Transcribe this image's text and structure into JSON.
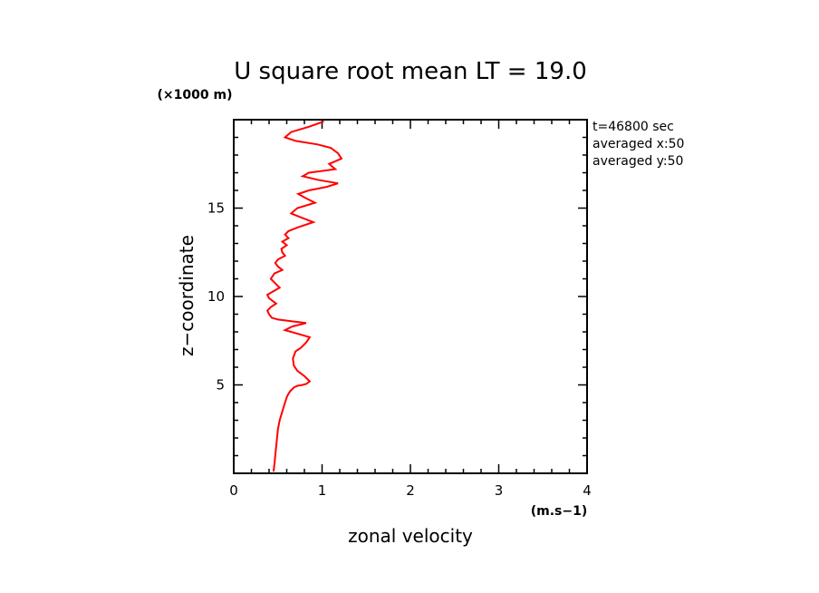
{
  "chart_data": {
    "type": "line",
    "title": "U square root mean LT = 19.0",
    "xlabel": "zonal velocity",
    "ylabel": "z−coordinate",
    "x_unit": "(m.s−1)",
    "y_unit": "(×1000 m)",
    "xlim": [
      0,
      4
    ],
    "ylim": [
      0,
      20
    ],
    "x_ticks": [
      "0",
      "1",
      "2",
      "3",
      "4"
    ],
    "y_ticks": [
      "5",
      "10",
      "15"
    ],
    "grid": false,
    "info_lines": [
      "t=46800 sec",
      "averaged  x:50",
      "averaged  y:50"
    ],
    "series": [
      {
        "color": "#ff0000",
        "x": [
          0.45,
          0.46,
          0.47,
          0.48,
          0.49,
          0.5,
          0.52,
          0.55,
          0.58,
          0.6,
          0.62,
          0.64,
          0.66,
          0.68,
          0.72,
          0.78,
          0.82,
          0.86,
          0.8,
          0.72,
          0.68,
          0.67,
          0.7,
          0.76,
          0.82,
          0.86,
          0.72,
          0.58,
          0.66,
          0.82,
          0.65,
          0.5,
          0.43,
          0.4,
          0.38,
          0.42,
          0.48,
          0.4,
          0.38,
          0.45,
          0.52,
          0.48,
          0.42,
          0.46,
          0.55,
          0.5,
          0.47,
          0.5,
          0.58,
          0.55,
          0.54,
          0.6,
          0.55,
          0.62,
          0.58,
          0.62,
          0.72,
          0.9,
          0.75,
          0.65,
          0.72,
          0.92,
          0.8,
          0.73,
          0.85,
          1.05,
          1.18,
          0.95,
          0.78,
          0.85,
          1.15,
          1.08,
          1.22,
          1.18,
          1.1,
          0.95,
          0.7,
          0.58,
          0.65,
          0.85,
          1.02
        ],
        "y": [
          0.1,
          0.5,
          1.0,
          1.5,
          2.0,
          2.5,
          3.0,
          3.5,
          4.0,
          4.3,
          4.5,
          4.65,
          4.75,
          4.85,
          4.95,
          5.0,
          5.05,
          5.2,
          5.5,
          5.8,
          6.1,
          6.5,
          6.9,
          7.1,
          7.4,
          7.7,
          7.9,
          8.1,
          8.3,
          8.5,
          8.6,
          8.7,
          8.8,
          9.0,
          9.2,
          9.4,
          9.6,
          9.9,
          10.1,
          10.3,
          10.5,
          10.7,
          11.0,
          11.3,
          11.5,
          11.7,
          11.9,
          12.1,
          12.3,
          12.5,
          12.7,
          12.9,
          13.1,
          13.3,
          13.5,
          13.7,
          13.9,
          14.2,
          14.5,
          14.7,
          15.0,
          15.3,
          15.6,
          15.8,
          16.0,
          16.2,
          16.4,
          16.6,
          16.8,
          17.0,
          17.2,
          17.5,
          17.8,
          18.1,
          18.4,
          18.6,
          18.8,
          19.0,
          19.3,
          19.6,
          19.9
        ]
      }
    ]
  }
}
